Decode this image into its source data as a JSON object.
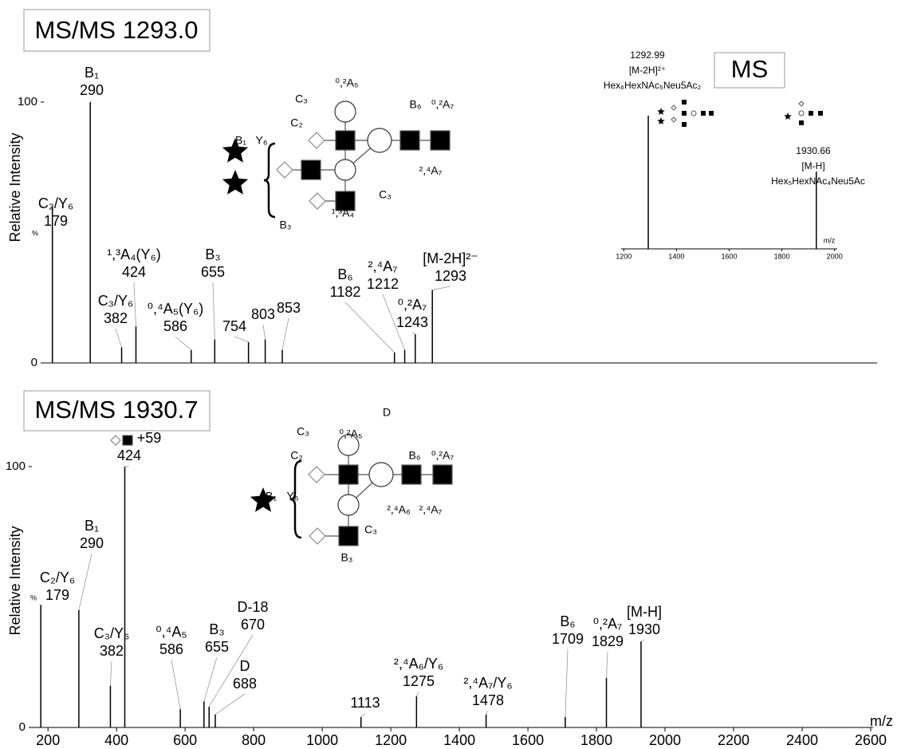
{
  "chart_data": [
    {
      "type": "stem",
      "title": "MS/MS 1293.0",
      "ylabel": "Relative Intensity",
      "yunit_label": "%",
      "xlim": [
        154,
        2597
      ],
      "ylim": [
        0,
        100
      ],
      "yticks": [
        0,
        100
      ],
      "color": "#000000",
      "x": [
        179,
        290,
        382,
        424,
        586,
        655,
        754,
        803,
        853,
        1182,
        1212,
        1243,
        1293
      ],
      "values": [
        60,
        100,
        6,
        14,
        5,
        9,
        8,
        9,
        5,
        4,
        5,
        11,
        28
      ],
      "peak_labels": [
        "C₂/Y₆",
        "B₁",
        "C₃/Y₆",
        "¹,³A₄(Y₆)",
        "⁰,⁴A₅(Y₆)",
        "B₃",
        null,
        null,
        null,
        "B₆",
        "²,⁴A₇",
        "⁰,²A₇",
        "[M-2H]²⁻"
      ],
      "glycan_labels": [
        "B₁",
        "Y₆",
        "C₃",
        "⁰,²A₅",
        "C₂",
        "B₆",
        "⁰,²A₇",
        "²,⁴A₇",
        "C₃",
        "B₃",
        "¹,³A₄"
      ]
    },
    {
      "type": "stem",
      "title": "MS",
      "xlabel": "m/z",
      "xlim": [
        1190,
        2010
      ],
      "xticks": [
        1200,
        1400,
        1600,
        1800,
        2000
      ],
      "ylim": [
        0,
        100
      ],
      "color": "#000000",
      "x": [
        1292.99,
        1930.66
      ],
      "values": [
        100,
        58
      ],
      "ion_labels": [
        "[M-2H]²⁺",
        "[M-H]"
      ],
      "composition_labels": [
        "Hex₆HexNAc₅Neu5Ac₂",
        "Hex₅HexNAc₄Neu5Ac"
      ]
    },
    {
      "type": "stem",
      "title": "MS/MS 1930.7",
      "ylabel": "Relative Intensity",
      "yunit_label": "%",
      "xlabel": "m/z",
      "xlim": [
        153,
        2607
      ],
      "xticks": [
        200,
        400,
        600,
        800,
        1000,
        1200,
        1400,
        1600,
        1800,
        2000,
        2200,
        2400,
        2600
      ],
      "ylim": [
        0,
        100
      ],
      "yticks": [
        0,
        100
      ],
      "color": "#000000",
      "x": [
        179,
        290,
        382,
        424,
        586,
        655,
        670,
        688,
        1113,
        1275,
        1478,
        1709,
        1829,
        1930
      ],
      "values": [
        47,
        45,
        16,
        100,
        7,
        10,
        8,
        5,
        4,
        12,
        5,
        4,
        19,
        33
      ],
      "peak_labels": [
        "C₂/Y₆",
        "B₁",
        "C₃/Y₆",
        "+59",
        "⁰,⁴A₅",
        "B₃",
        "D-18",
        "D",
        null,
        "²,⁴A₆/Y₆",
        "²,⁴A₇/Y₆",
        "B₆",
        "⁰,²A₇",
        "[M-H]"
      ],
      "glycan_labels": [
        "D",
        "C₃",
        "⁰,²A₅",
        "C₂",
        "B₁",
        "Y₆",
        "B₆",
        "⁰,²A₇",
        "²,⁴A₆",
        "²,⁴A₇",
        "C₃",
        "B₃"
      ]
    }
  ]
}
